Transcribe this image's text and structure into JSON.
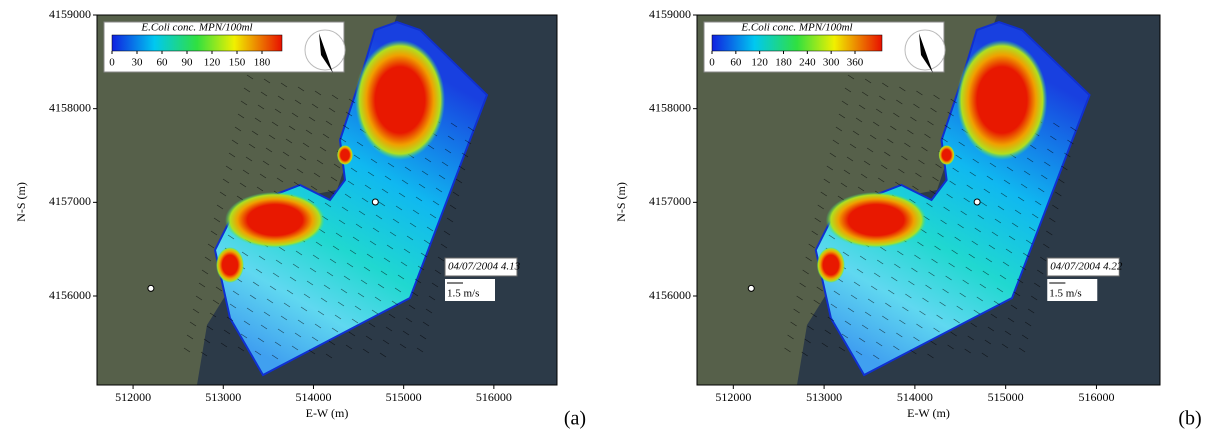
{
  "chart_data": [
    {
      "type": "heatmap",
      "panel_label": "(a)",
      "timestamp": "04/07/2004 4.13",
      "scale_label": "1.5 m/s",
      "x_label": "E-W (m)",
      "y_label": "N-S (m)",
      "xlim": [
        511600,
        516700
      ],
      "ylim": [
        4155050,
        4159000
      ],
      "xticks": [
        512000,
        513000,
        514000,
        515000,
        516000
      ],
      "yticks": [
        4156000,
        4157000,
        4158000,
        4159000
      ],
      "colorbar": {
        "label": "E.Coli conc. MPN/100ml",
        "lim": [
          0,
          204
        ],
        "ticks": [
          0,
          30,
          60,
          90,
          120,
          150,
          180
        ]
      }
    },
    {
      "type": "heatmap",
      "panel_label": "(b)",
      "timestamp": "04/07/2004 4.22",
      "scale_label": "1.5 m/s",
      "x_label": "E-W (m)",
      "y_label": "N-S (m)",
      "xlim": [
        511600,
        516700
      ],
      "ylim": [
        4155050,
        4159000
      ],
      "xticks": [
        512000,
        513000,
        514000,
        515000,
        516000
      ],
      "yticks": [
        4156000,
        4157000,
        4158000,
        4159000
      ],
      "colorbar": {
        "label": "E.Coli conc. MPN/100ml",
        "lim": [
          0,
          428
        ],
        "ticks": [
          0,
          60,
          120,
          180,
          240,
          300,
          360
        ]
      }
    }
  ]
}
